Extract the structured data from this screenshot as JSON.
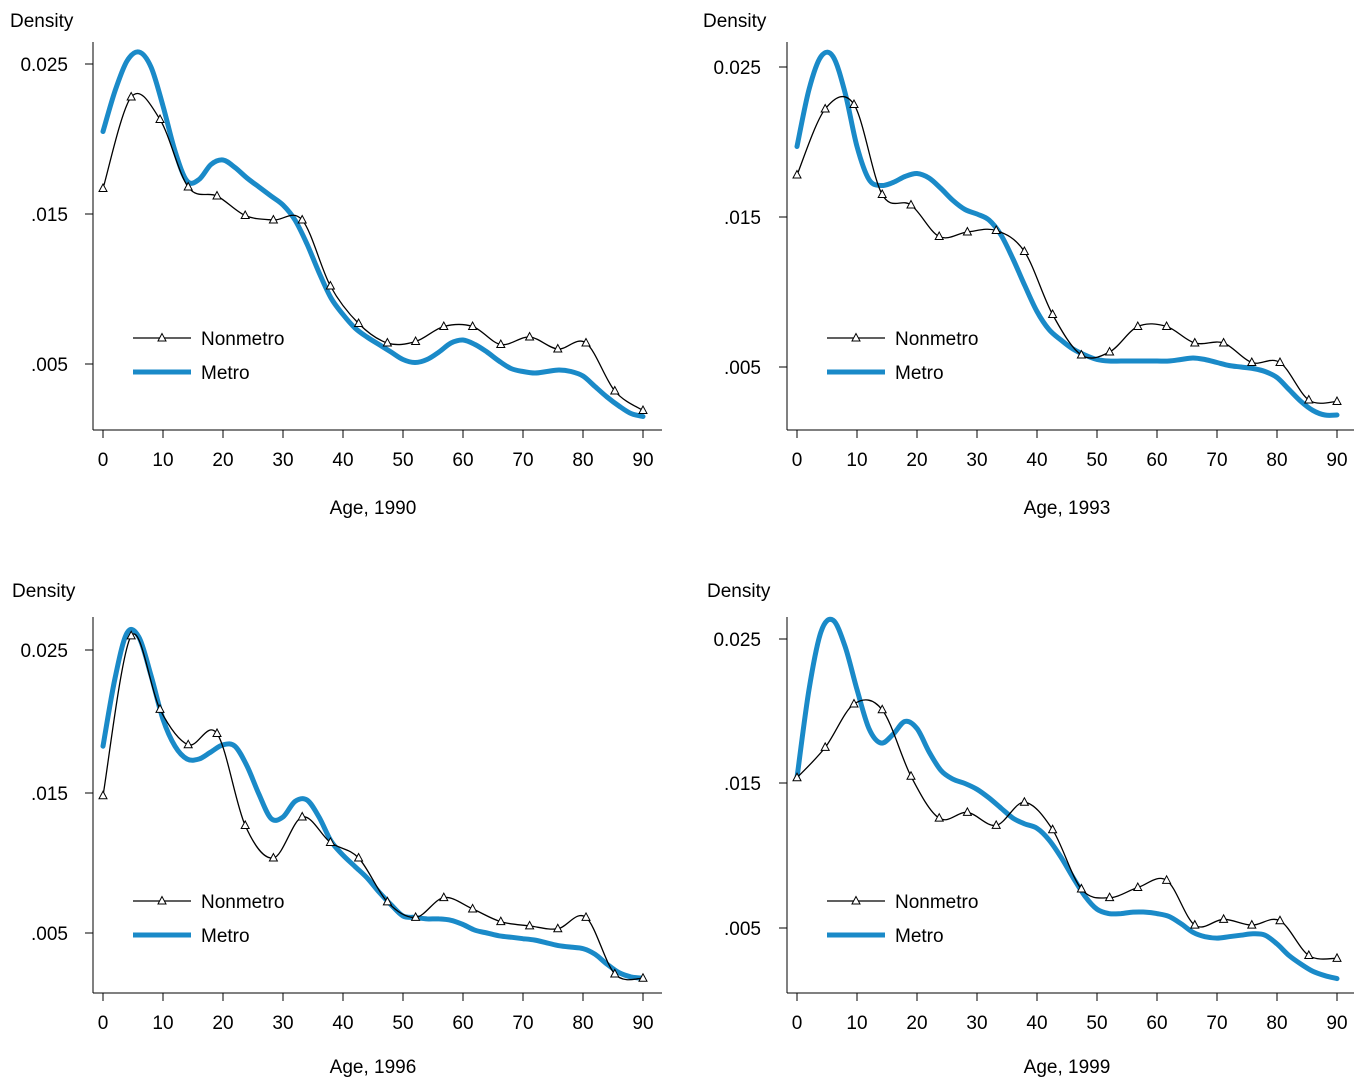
{
  "colors": {
    "nonmetro": "#000000",
    "metro": "#1a8ac8"
  },
  "chart_data": [
    {
      "type": "line",
      "ylabel": "Density",
      "xlabel": "Age, 1990",
      "xlim": [
        0,
        90
      ],
      "ylim": [
        0.0015,
        0.0265
      ],
      "xticks": [
        "0",
        "10",
        "20",
        "30",
        "40",
        "50",
        "60",
        "70",
        "80",
        "90"
      ],
      "yticks": [
        ".005",
        ".015",
        "0.025"
      ],
      "legend": "bottom-left",
      "series": [
        {
          "name": "Nonmetro",
          "marker": "triangle",
          "x": [
            0,
            4.7,
            9.5,
            14.2,
            19,
            23.7,
            28.4,
            33.2,
            37.9,
            42.6,
            47.4,
            52.1,
            56.8,
            61.6,
            66.3,
            71.1,
            75.8,
            80.5,
            85.3,
            90
          ],
          "values": [
            0.0167,
            0.0228,
            0.0213,
            0.0168,
            0.0162,
            0.0149,
            0.0146,
            0.0146,
            0.0102,
            0.0077,
            0.0064,
            0.0065,
            0.0075,
            0.0075,
            0.0063,
            0.0068,
            0.006,
            0.0064,
            0.0032,
            0.0019
          ]
        },
        {
          "name": "Metro",
          "x": [
            0,
            2,
            4,
            6,
            8,
            10,
            12,
            14,
            16,
            18,
            20,
            22,
            24,
            26,
            28,
            30,
            32,
            34,
            36,
            38,
            40,
            42,
            44,
            46,
            48,
            50,
            52,
            54,
            56,
            58,
            60,
            62,
            64,
            66,
            68,
            70,
            72,
            74,
            76,
            78,
            80,
            82,
            84,
            86,
            88,
            90
          ],
          "values": [
            0.0205,
            0.0232,
            0.0252,
            0.0258,
            0.0248,
            0.0222,
            0.0192,
            0.0172,
            0.0173,
            0.0183,
            0.0186,
            0.0181,
            0.0174,
            0.0168,
            0.0162,
            0.0156,
            0.0146,
            0.013,
            0.0111,
            0.0094,
            0.0083,
            0.0074,
            0.0068,
            0.0063,
            0.0058,
            0.0053,
            0.0051,
            0.0053,
            0.0058,
            0.0064,
            0.0066,
            0.0063,
            0.0058,
            0.0052,
            0.0047,
            0.0045,
            0.0044,
            0.0045,
            0.0046,
            0.0045,
            0.0042,
            0.0035,
            0.0028,
            0.0022,
            0.0017,
            0.0015
          ]
        }
      ]
    },
    {
      "type": "line",
      "ylabel": "Density",
      "xlabel": "Age, 1993",
      "xlim": [
        0,
        90
      ],
      "ylim": [
        0.0015,
        0.0265
      ],
      "xticks": [
        "0",
        "10",
        "20",
        "30",
        "40",
        "50",
        "60",
        "70",
        "80",
        "90"
      ],
      "yticks": [
        ".005",
        ".015",
        "0.025"
      ],
      "legend": "bottom-left",
      "series": [
        {
          "name": "Nonmetro",
          "marker": "triangle",
          "x": [
            0,
            4.7,
            9.5,
            14.2,
            19,
            23.7,
            28.4,
            33.2,
            37.9,
            42.6,
            47.4,
            52.1,
            56.8,
            61.6,
            66.3,
            71.1,
            75.8,
            80.5,
            85.3,
            90
          ],
          "values": [
            0.0178,
            0.0222,
            0.0225,
            0.0165,
            0.0158,
            0.0137,
            0.014,
            0.0141,
            0.0127,
            0.0085,
            0.0058,
            0.006,
            0.0077,
            0.0077,
            0.0066,
            0.0066,
            0.0053,
            0.0053,
            0.0028,
            0.0027
          ]
        },
        {
          "name": "Metro",
          "x": [
            0,
            2,
            4,
            6,
            8,
            10,
            12,
            14,
            16,
            18,
            20,
            22,
            24,
            26,
            28,
            30,
            32,
            34,
            36,
            38,
            40,
            42,
            44,
            46,
            48,
            50,
            52,
            54,
            56,
            58,
            60,
            62,
            64,
            66,
            68,
            70,
            72,
            74,
            76,
            78,
            80,
            82,
            84,
            86,
            88,
            90
          ],
          "values": [
            0.0197,
            0.0235,
            0.0257,
            0.0257,
            0.0233,
            0.0197,
            0.0175,
            0.0171,
            0.0173,
            0.0177,
            0.0179,
            0.0176,
            0.0169,
            0.0161,
            0.0155,
            0.0152,
            0.0148,
            0.0138,
            0.0122,
            0.0104,
            0.0087,
            0.0075,
            0.0068,
            0.0062,
            0.0058,
            0.0055,
            0.0054,
            0.0054,
            0.0054,
            0.0054,
            0.0054,
            0.0054,
            0.0055,
            0.0056,
            0.0055,
            0.0053,
            0.0051,
            0.005,
            0.0049,
            0.0047,
            0.0043,
            0.0035,
            0.0027,
            0.0021,
            0.0018,
            0.0018
          ]
        }
      ]
    },
    {
      "type": "line",
      "ylabel": "Density",
      "xlabel": "Age, 1996",
      "xlim": [
        0,
        90
      ],
      "ylim": [
        0.0015,
        0.0265
      ],
      "xticks": [
        "0",
        "10",
        "20",
        "30",
        "40",
        "50",
        "60",
        "70",
        "80",
        "90"
      ],
      "yticks": [
        ".005",
        ".015",
        "0.025"
      ],
      "legend": "bottom-left",
      "series": [
        {
          "name": "Nonmetro",
          "marker": "triangle",
          "x": [
            0,
            4.7,
            9.5,
            14.2,
            19,
            23.7,
            28.4,
            33.2,
            37.9,
            42.6,
            47.4,
            52.1,
            56.8,
            61.6,
            66.3,
            71.1,
            75.8,
            80.5,
            85.3,
            90
          ],
          "values": [
            0.0147,
            0.026,
            0.0208,
            0.0183,
            0.0191,
            0.0126,
            0.0103,
            0.0132,
            0.0114,
            0.0103,
            0.0072,
            0.0061,
            0.0075,
            0.0067,
            0.0058,
            0.0055,
            0.0053,
            0.0061,
            0.0021,
            0.0018
          ]
        },
        {
          "name": "Metro",
          "x": [
            0,
            2,
            4,
            6,
            8,
            10,
            12,
            14,
            16,
            18,
            20,
            22,
            24,
            26,
            28,
            30,
            32,
            34,
            36,
            38,
            40,
            42,
            44,
            46,
            48,
            50,
            52,
            54,
            56,
            58,
            60,
            62,
            64,
            66,
            68,
            70,
            72,
            74,
            76,
            78,
            80,
            82,
            84,
            86,
            88,
            90
          ],
          "values": [
            0.0182,
            0.023,
            0.0262,
            0.0259,
            0.0232,
            0.0201,
            0.0182,
            0.0173,
            0.0173,
            0.0178,
            0.0183,
            0.0182,
            0.0168,
            0.0148,
            0.0131,
            0.0132,
            0.0143,
            0.0144,
            0.0132,
            0.0115,
            0.0105,
            0.0097,
            0.0089,
            0.0079,
            0.007,
            0.0062,
            0.0061,
            0.006,
            0.006,
            0.0059,
            0.0056,
            0.0052,
            0.005,
            0.0048,
            0.0047,
            0.0046,
            0.0045,
            0.0043,
            0.0041,
            0.004,
            0.0039,
            0.0035,
            0.0028,
            0.0022,
            0.0019,
            0.0018
          ]
        }
      ]
    },
    {
      "type": "line",
      "ylabel": "Density",
      "xlabel": "Age, 1999",
      "xlim": [
        0,
        90
      ],
      "ylim": [
        0.0015,
        0.0265
      ],
      "xticks": [
        "0",
        "10",
        "20",
        "30",
        "40",
        "50",
        "60",
        "70",
        "80",
        "90"
      ],
      "yticks": [
        ".005",
        ".015",
        "0.025"
      ],
      "legend": "bottom-left",
      "series": [
        {
          "name": "Nonmetro",
          "marker": "triangle",
          "x": [
            0,
            4.7,
            9.5,
            14.2,
            19,
            23.7,
            28.4,
            33.2,
            37.9,
            42.6,
            47.4,
            52.1,
            56.8,
            61.6,
            66.3,
            71.1,
            75.8,
            80.5,
            85.3,
            90
          ],
          "values": [
            0.0154,
            0.0175,
            0.0205,
            0.0201,
            0.0155,
            0.0126,
            0.013,
            0.0121,
            0.0137,
            0.0118,
            0.0077,
            0.0071,
            0.0078,
            0.0083,
            0.0052,
            0.0056,
            0.0052,
            0.0055,
            0.0031,
            0.0029
          ]
        },
        {
          "name": "Metro",
          "x": [
            0,
            2,
            4,
            6,
            8,
            10,
            12,
            14,
            16,
            18,
            20,
            22,
            24,
            26,
            28,
            30,
            32,
            34,
            36,
            38,
            40,
            42,
            44,
            46,
            48,
            50,
            52,
            54,
            56,
            58,
            60,
            62,
            64,
            66,
            68,
            70,
            72,
            74,
            76,
            78,
            80,
            82,
            84,
            86,
            88,
            90
          ],
          "values": [
            0.0154,
            0.0215,
            0.0255,
            0.0263,
            0.0245,
            0.0215,
            0.0188,
            0.0178,
            0.0184,
            0.0193,
            0.0188,
            0.0172,
            0.0159,
            0.0153,
            0.015,
            0.0146,
            0.014,
            0.0133,
            0.0126,
            0.0122,
            0.0119,
            0.0111,
            0.0099,
            0.0085,
            0.0072,
            0.0063,
            0.006,
            0.006,
            0.0061,
            0.0061,
            0.006,
            0.0058,
            0.0053,
            0.0047,
            0.0044,
            0.0043,
            0.0044,
            0.0045,
            0.0046,
            0.0045,
            0.0039,
            0.0031,
            0.0025,
            0.002,
            0.0017,
            0.0015
          ]
        }
      ]
    }
  ]
}
